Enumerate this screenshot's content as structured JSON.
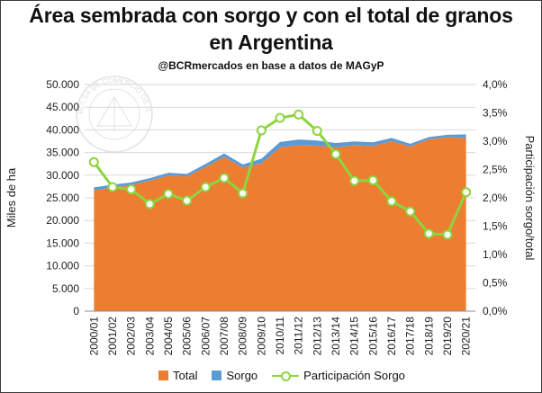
{
  "chart_data": {
    "type": "area",
    "title_line1": "Área sembrada con sorgo y con el total de granos",
    "title_line2": "en Argentina",
    "subtitle": "@BCRmercados en base a datos de MAGyP",
    "ylabel_left": "Miles de ha",
    "ylabel_right": "Participación sorgo/total",
    "y_left_range": [
      0,
      50000
    ],
    "y_right_range": [
      0,
      4.0
    ],
    "y_left_ticks": [
      "0",
      "5.000",
      "10.000",
      "15.000",
      "20.000",
      "25.000",
      "30.000",
      "35.000",
      "40.000",
      "45.000",
      "50.000"
    ],
    "y_right_ticks": [
      "0,0%",
      "0,5%",
      "1,0%",
      "1,5%",
      "2,0%",
      "2,5%",
      "3,0%",
      "3,5%",
      "4,0%"
    ],
    "categories": [
      "2000/01",
      "2001/02",
      "2002/03",
      "2003/04",
      "2004/05",
      "2005/06",
      "2006/07",
      "2007/08",
      "2008/09",
      "2009/10",
      "2010/11",
      "2011/12",
      "2012/13",
      "2013/14",
      "2014/15",
      "2015/16",
      "2016/17",
      "2017/18",
      "2018/19",
      "2019/20",
      "2020/21"
    ],
    "series": [
      {
        "name": "Total",
        "color": "#ED7D31",
        "values": [
          26600,
          27300,
          27800,
          28800,
          29900,
          29700,
          31800,
          34000,
          31700,
          32600,
          36100,
          36600,
          36500,
          36100,
          36600,
          36400,
          37500,
          36300,
          37900,
          38400,
          38200
        ]
      },
      {
        "name": "Sorgo",
        "color": "#5B9BD5",
        "values": [
          700,
          600,
          600,
          550,
          620,
          580,
          700,
          800,
          660,
          1040,
          1230,
          1270,
          1160,
          1000,
          840,
          840,
          730,
          640,
          520,
          520,
          800
        ]
      },
      {
        "name": "Participación Sorgo",
        "color": "#8ED43F",
        "axis": "right",
        "values": [
          2.63,
          2.19,
          2.15,
          1.89,
          2.07,
          1.95,
          2.19,
          2.35,
          2.08,
          3.19,
          3.41,
          3.47,
          3.18,
          2.77,
          2.3,
          2.31,
          1.94,
          1.76,
          1.37,
          1.35,
          2.1
        ]
      }
    ],
    "legend": [
      "Total",
      "Sorgo",
      "Participación Sorgo"
    ]
  },
  "watermark": {
    "text": "BOLSA DE COMERCIO DE ROSARIO"
  }
}
